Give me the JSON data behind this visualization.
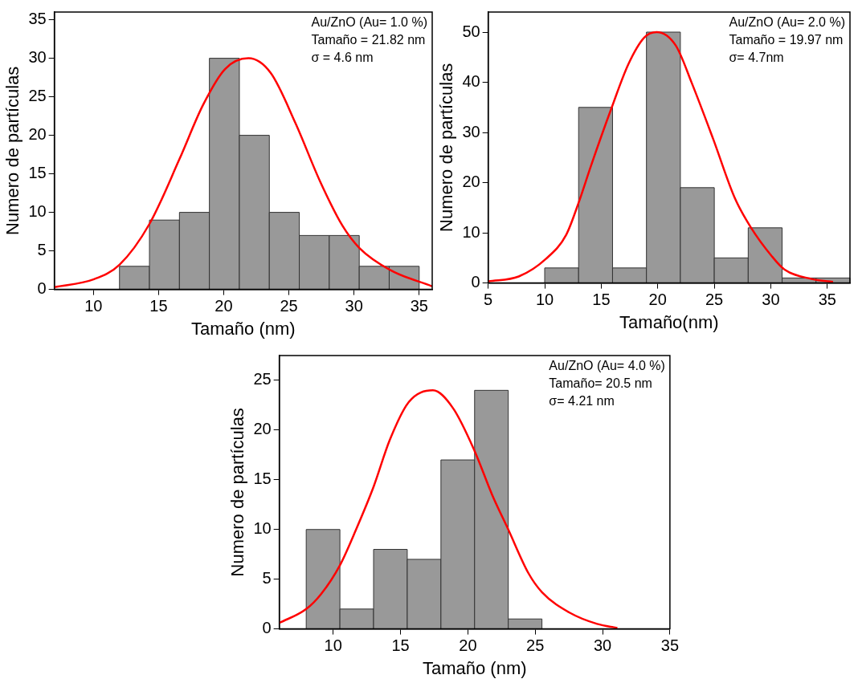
{
  "chart_data": [
    {
      "type": "histogram",
      "xlabel": "Tamaño (nm)",
      "ylabel": "Numero de partículas",
      "annotations": [
        "Au/ZnO (Au= 1.0 %)",
        "Tamaño = 21.82 nm",
        "σ = 4.6 nm"
      ],
      "xlim": [
        7,
        36
      ],
      "xticks": [
        10,
        15,
        20,
        25,
        30,
        35
      ],
      "ylim": [
        0,
        36
      ],
      "yticks": [
        0,
        5,
        10,
        15,
        20,
        25,
        30,
        35
      ],
      "grid": false,
      "legend": false,
      "series": [
        {
          "color": "#999999",
          "bins": [
            12.0,
            14.3,
            16.6,
            18.9,
            21.2,
            23.5,
            25.8,
            28.1,
            30.4,
            32.7,
            35.0
          ],
          "values": [
            3,
            9,
            10,
            30,
            20,
            10,
            7,
            7,
            3,
            3
          ]
        },
        {
          "type": "line",
          "color": "#ff0000",
          "x": [
            7.0,
            10.0,
            12.0,
            14.3,
            16.6,
            18.4,
            20.1,
            21.9,
            23.6,
            25.5,
            27.4,
            29.1,
            30.4,
            32.8,
            36.0
          ],
          "values": [
            0.3,
            1.3,
            3.2,
            8.5,
            16.9,
            23.9,
            28.6,
            30.0,
            28.1,
            21.6,
            14.0,
            8.3,
            5.4,
            2.5,
            0.4
          ]
        }
      ]
    },
    {
      "type": "histogram",
      "xlabel": "Tamaño(nm)",
      "ylabel": "Numero de partículas",
      "annotations": [
        "Au/ZnO (Au= 2.0 %)",
        "Tamaño = 19.97 nm",
        "σ= 4.7nm"
      ],
      "xlim": [
        5,
        37
      ],
      "xticks": [
        5,
        10,
        15,
        20,
        25,
        30,
        35
      ],
      "ylim": [
        0,
        54
      ],
      "yticks": [
        0,
        10,
        20,
        30,
        40,
        50
      ],
      "grid": false,
      "legend": false,
      "series": [
        {
          "color": "#999999",
          "bins": [
            10,
            13,
            16,
            19,
            22,
            25,
            28,
            31,
            34,
            37
          ],
          "values": [
            3,
            35,
            3,
            50,
            19,
            5,
            11,
            1,
            1
          ]
        },
        {
          "type": "line",
          "color": "#ff0000",
          "x": [
            5.0,
            7.7,
            10.1,
            11.9,
            13.0,
            14.1,
            15.9,
            17.4,
            18.8,
            19.9,
            21.6,
            23.0,
            24.9,
            26.8,
            28.2,
            30.1,
            31.2,
            33.6,
            35.5
          ],
          "values": [
            0.3,
            1.3,
            4.8,
            9.6,
            16,
            23.4,
            34.8,
            43.6,
            48.9,
            50,
            47.3,
            39.9,
            28.7,
            17,
            11.2,
            5.3,
            2.7,
            0.8,
            0.2
          ]
        }
      ]
    },
    {
      "type": "histogram",
      "xlabel": "Tamaño (nm)",
      "ylabel": "Numero de partículas",
      "annotations": [
        "Au/ZnO (Au= 4.0 %)",
        "Tamaño= 20.5 nm",
        "σ= 4.21 nm"
      ],
      "xlim": [
        6,
        35
      ],
      "xticks": [
        10,
        15,
        20,
        25,
        30,
        35
      ],
      "ylim": [
        0,
        27.5
      ],
      "yticks": [
        0,
        5,
        10,
        15,
        20,
        25
      ],
      "grid": false,
      "legend": false,
      "series": [
        {
          "color": "#999999",
          "bins": [
            8.0,
            10.5,
            13.0,
            15.5,
            18.0,
            20.5,
            23.0,
            25.5
          ],
          "values": [
            10,
            2,
            8,
            7,
            17,
            24,
            1
          ]
        },
        {
          "type": "line",
          "color": "#ff0000",
          "x": [
            6.0,
            8.0,
            9.1,
            10.5,
            11.7,
            13.0,
            14.2,
            15.6,
            17.4,
            18.9,
            20.5,
            21.8,
            23.0,
            24.5,
            25.5,
            27.6,
            29.6,
            31.1
          ],
          "values": [
            0.6,
            2.0,
            3.5,
            6.4,
            10,
            14.3,
            19.0,
            22.8,
            24,
            22.2,
            17.9,
            13.5,
            10,
            5.6,
            3.7,
            1.6,
            0.5,
            0.1
          ]
        }
      ]
    }
  ]
}
